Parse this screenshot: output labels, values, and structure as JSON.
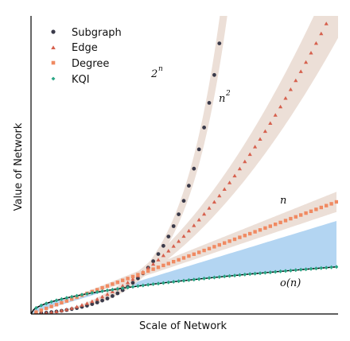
{
  "chart_data": {
    "type": "scatter",
    "xlabel": "Scale of Network",
    "ylabel": "Value of Network",
    "grid": false,
    "legend_position": "top-left",
    "ticks_shown": false,
    "series": [
      {
        "name": "Subgraph",
        "marker": "circle",
        "color": "#3a3a4a",
        "growth": "2^n",
        "x": [
          1,
          2,
          3,
          4,
          5,
          6,
          7,
          8,
          9,
          10,
          11,
          12,
          13,
          14,
          15,
          16,
          17,
          18,
          19,
          20,
          21,
          22,
          23,
          24,
          25,
          26,
          27,
          28,
          29,
          30,
          31,
          32,
          33,
          34,
          35,
          36,
          37,
          38,
          39
        ]
      },
      {
        "name": "Edge",
        "marker": "triangle",
        "color": "#d6604d",
        "growth": "n^2",
        "x": [
          1,
          2,
          3,
          4,
          5,
          6,
          7,
          8,
          9,
          10,
          11,
          12,
          13,
          14,
          15,
          16,
          17,
          18,
          19,
          20,
          21,
          22,
          23,
          24,
          25,
          26,
          27,
          28,
          29,
          30,
          31,
          32,
          33,
          34,
          35,
          36,
          37,
          38,
          39,
          40,
          41,
          42,
          43,
          44,
          45,
          46,
          47,
          48,
          49,
          50,
          51,
          52,
          53,
          54,
          55,
          56,
          57,
          58,
          59,
          60
        ]
      },
      {
        "name": "Degree",
        "marker": "square",
        "color": "#f08a62",
        "growth": "n",
        "x": [
          1,
          2,
          3,
          4,
          5,
          6,
          7,
          8,
          9,
          10,
          11,
          12,
          13,
          14,
          15,
          16,
          17,
          18,
          19,
          20,
          21,
          22,
          23,
          24,
          25,
          26,
          27,
          28,
          29,
          30,
          31,
          32,
          33,
          34,
          35,
          36,
          37,
          38,
          39,
          40,
          41,
          42,
          43,
          44,
          45,
          46,
          47,
          48,
          49,
          50,
          51,
          52,
          53,
          54,
          55,
          56,
          57,
          58,
          59,
          60
        ]
      },
      {
        "name": "KQI",
        "marker": "diamond",
        "color": "#2aa585",
        "growth": "o(n)",
        "x": [
          1,
          2,
          3,
          4,
          5,
          6,
          7,
          8,
          9,
          10,
          11,
          12,
          13,
          14,
          15,
          16,
          17,
          18,
          19,
          20,
          21,
          22,
          23,
          24,
          25,
          26,
          27,
          28,
          29,
          30,
          31,
          32,
          33,
          34,
          35,
          36,
          37,
          38,
          39,
          40,
          41,
          42,
          43,
          44,
          45,
          46,
          47,
          48,
          49,
          50,
          51,
          52,
          53,
          54,
          55,
          56,
          57,
          58,
          59,
          60
        ]
      }
    ],
    "annotations": [
      "2^n",
      "n^2",
      "n",
      "o(n)"
    ],
    "colors": {
      "band": "#ecdfd7",
      "sublinear_region": "#b3d5f2",
      "fit_line": "#000000",
      "axis": "#000000"
    }
  }
}
